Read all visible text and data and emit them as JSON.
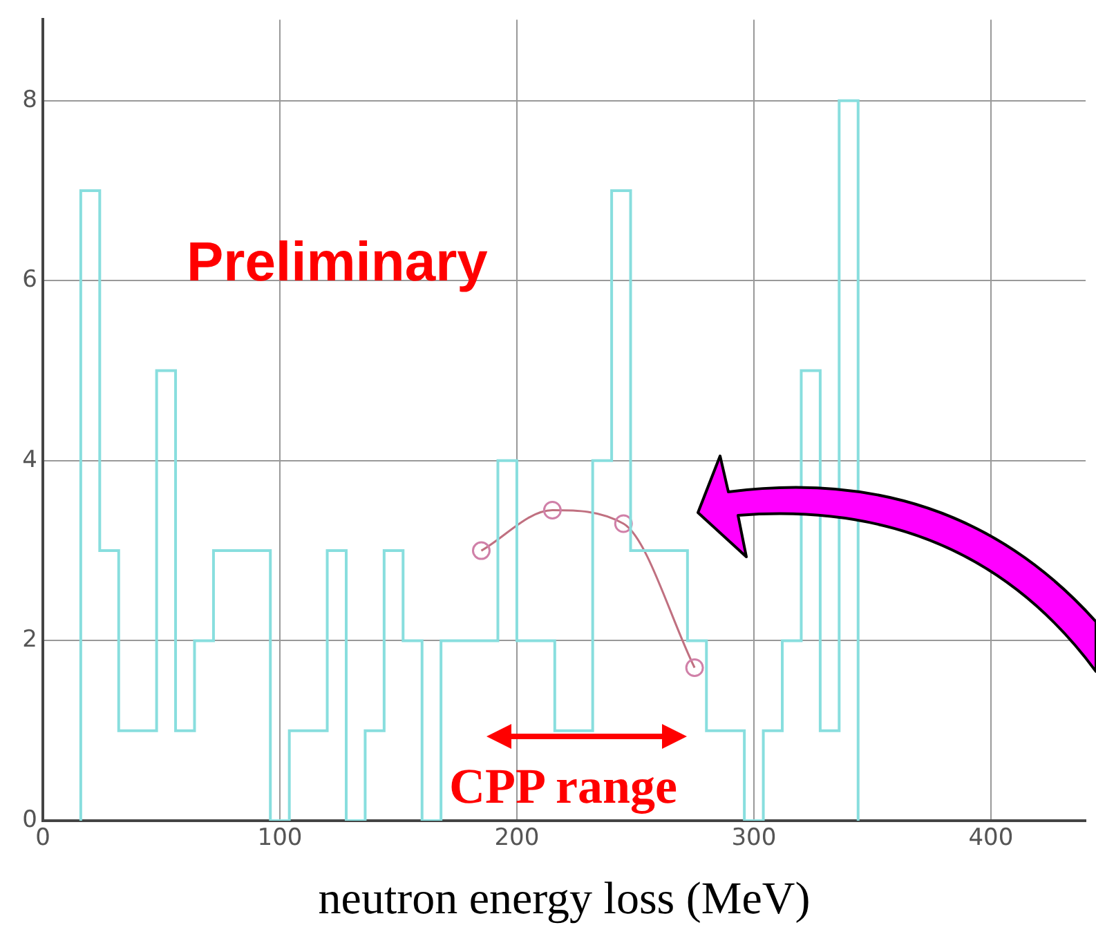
{
  "chart_data": {
    "type": "histogram",
    "xlabel": "neutron energy loss (MeV)",
    "bins": [
      16,
      24,
      32,
      40,
      48,
      56,
      64,
      72,
      80,
      88,
      96,
      104,
      112,
      120,
      128,
      136,
      144,
      152,
      160,
      168,
      176,
      184,
      192,
      200,
      208,
      216,
      224,
      232,
      240,
      248,
      256,
      264,
      272,
      280,
      288,
      296,
      304,
      312,
      320,
      328,
      336,
      344
    ],
    "values": [
      7,
      3,
      1,
      1,
      5,
      1,
      2,
      3,
      3,
      3,
      0,
      1,
      1,
      3,
      0,
      1,
      3,
      2,
      0,
      2,
      2,
      2,
      4,
      2,
      2,
      1,
      1,
      4,
      7,
      3,
      3,
      3,
      2,
      1,
      1,
      0,
      1,
      2,
      5,
      1,
      8
    ],
    "color": "#88dede",
    "series": [
      {
        "type": "line",
        "color": "#c07080",
        "x": [
          185,
          215,
          245,
          275
        ],
        "values": [
          3.0,
          3.45,
          3.3,
          1.7
        ],
        "marker": "circle"
      }
    ],
    "xlim": [
      0,
      440
    ],
    "xticks": [
      0,
      100,
      200,
      300,
      400
    ],
    "ylim": [
      0,
      8.9
    ],
    "yticks": [
      0,
      2,
      4,
      6,
      8
    ],
    "grid": true,
    "annotations": [
      "Preliminary",
      "CPP range"
    ]
  }
}
